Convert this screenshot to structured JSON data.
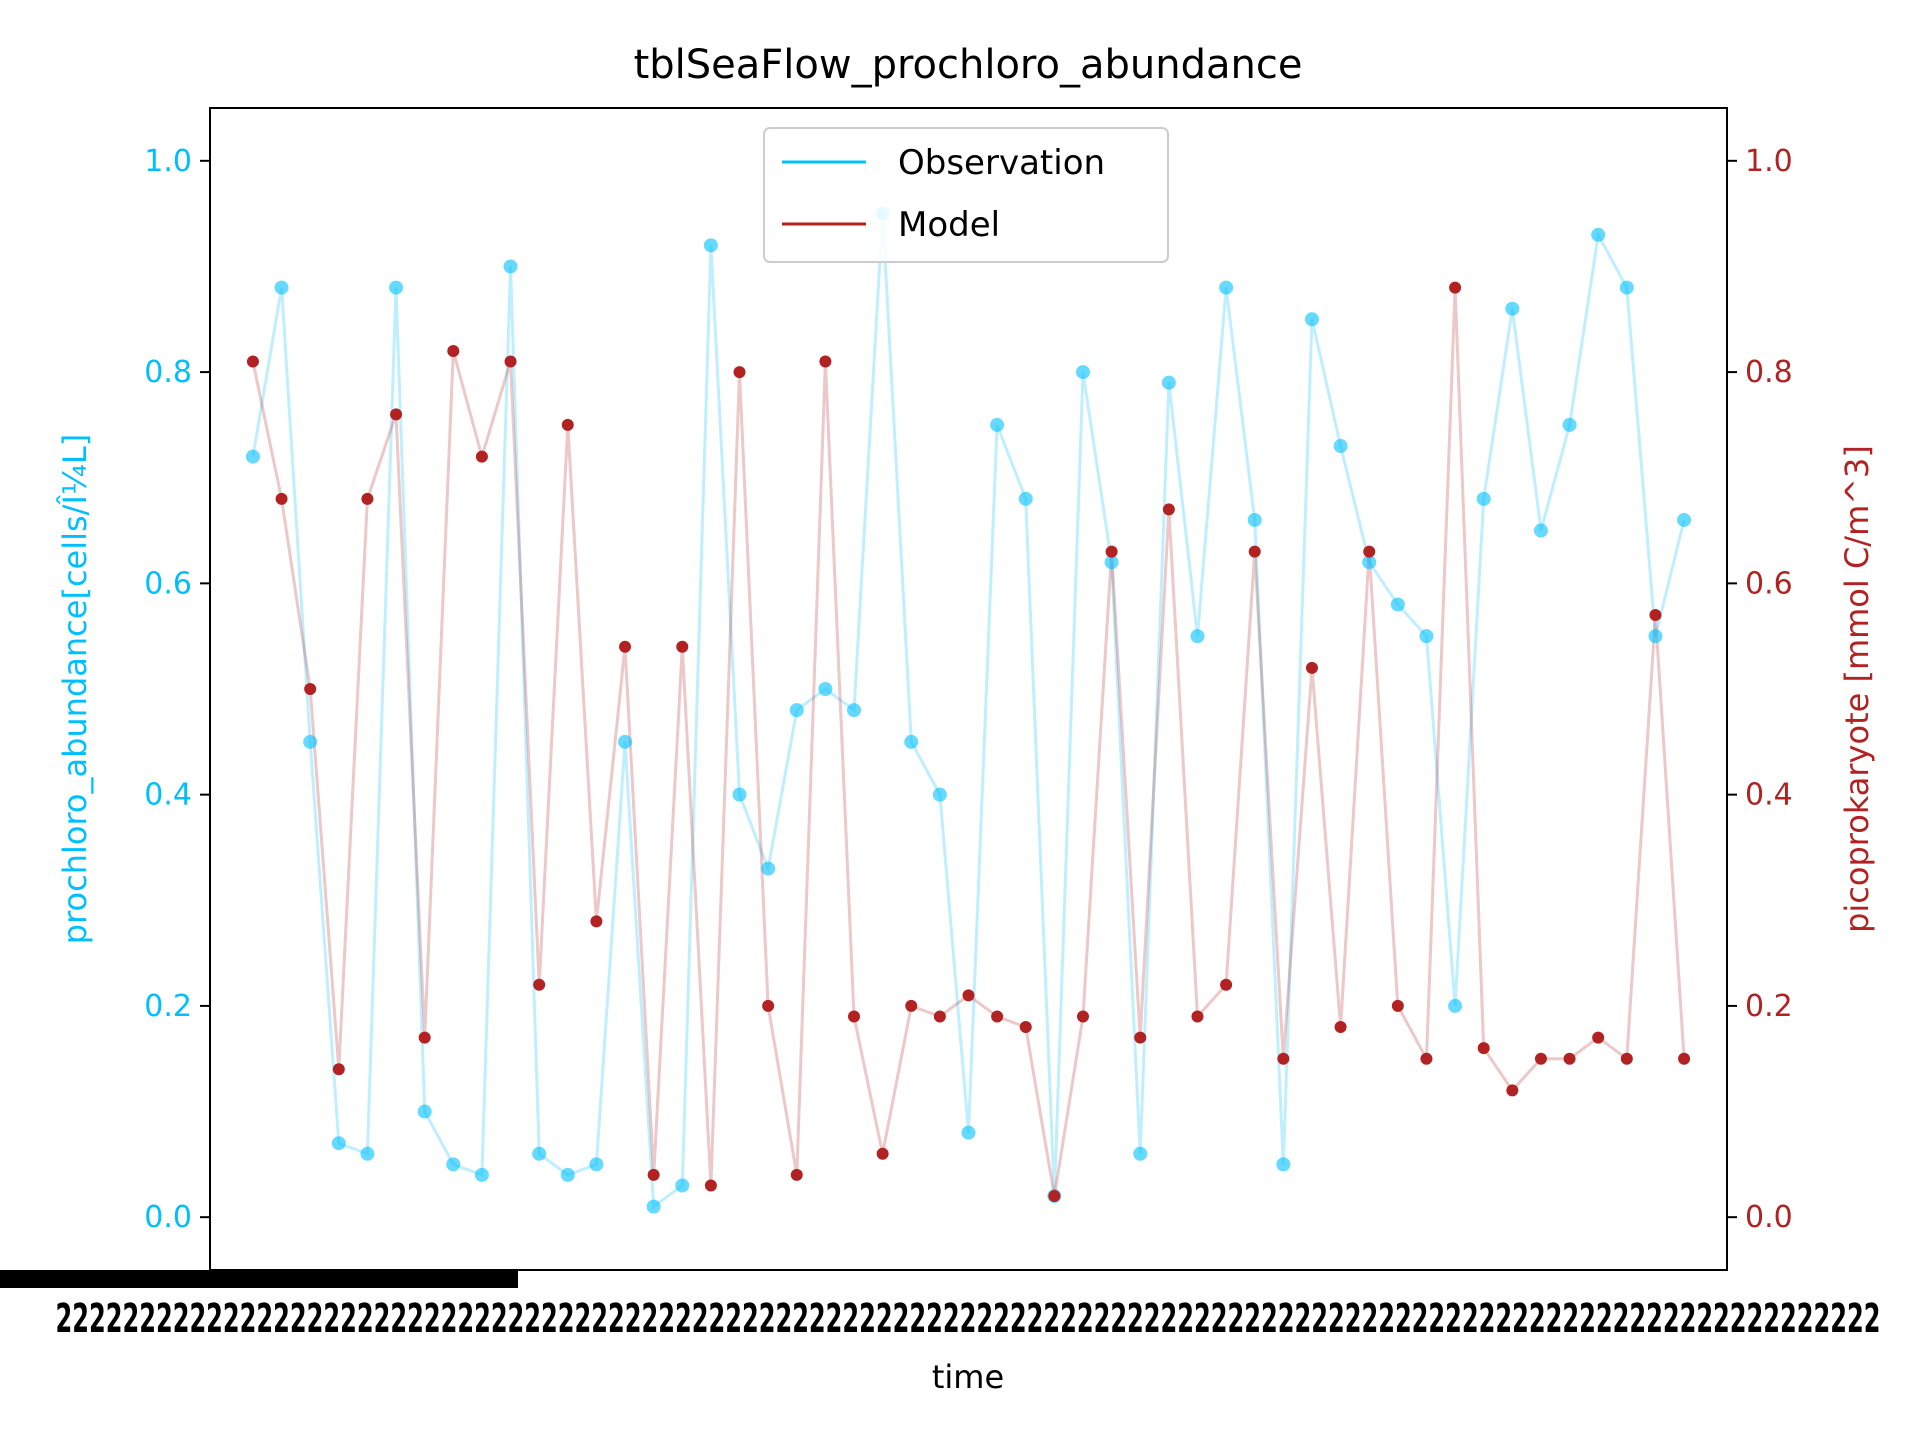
{
  "chart_data": {
    "type": "scatter",
    "title": "tblSeaFlow_prochloro_abundance",
    "xlabel": "time",
    "ylabel_left": "prochloro_abundance[cells/Î¼L]",
    "ylabel_right": "picoprokaryote [mmol C/m^3]",
    "ylim_left": [
      -0.05,
      1.05
    ],
    "ylim_right": [
      -0.05,
      1.05
    ],
    "yticks_left": [
      "0.0",
      "0.2",
      "0.4",
      "0.6",
      "0.8",
      "1.0"
    ],
    "yticks_right": [
      "0.0",
      "0.2",
      "0.4",
      "0.6",
      "0.8",
      "1.0"
    ],
    "x_ticks_unreadable": true,
    "x_tick_text": "2222222222222222222222222222222222222222222222222222222222222222222222222222222222222222222222222222222222222",
    "legend_position": "upper-center",
    "grid": false,
    "colors": {
      "observation": "#00bfff",
      "model": "#b22222"
    },
    "series": [
      {
        "name": "Observation",
        "color": "#00bfff",
        "x": [
          0,
          2,
          4,
          6,
          8,
          10,
          12,
          14,
          16,
          18,
          20,
          22,
          24,
          26,
          28,
          30,
          32,
          34,
          36,
          38,
          40,
          42,
          44,
          46,
          48,
          50,
          52,
          54,
          56,
          58,
          60,
          62,
          64,
          66,
          68,
          70,
          72,
          74,
          76,
          78,
          80,
          82,
          84,
          86,
          88,
          90,
          92,
          94,
          96,
          98,
          100
        ],
        "y": [
          0.72,
          0.88,
          0.45,
          0.07,
          0.06,
          0.88,
          0.1,
          0.05,
          0.04,
          0.9,
          0.06,
          0.04,
          0.05,
          0.45,
          0.01,
          0.03,
          0.92,
          0.4,
          0.33,
          0.48,
          0.5,
          0.48,
          0.95,
          0.45,
          0.4,
          0.08,
          0.75,
          0.68,
          0.02,
          0.8,
          0.62,
          0.06,
          0.79,
          0.55,
          0.88,
          0.66,
          0.05,
          0.85,
          0.73,
          0.62,
          0.58,
          0.55,
          0.2,
          0.68,
          0.86,
          0.65,
          0.75,
          0.93,
          0.88,
          0.55,
          0.66
        ]
      },
      {
        "name": "Model",
        "color": "#b22222",
        "x": [
          0,
          2,
          4,
          6,
          8,
          10,
          12,
          14,
          16,
          18,
          20,
          22,
          24,
          26,
          28,
          30,
          32,
          34,
          36,
          38,
          40,
          42,
          44,
          46,
          48,
          50,
          52,
          54,
          56,
          58,
          60,
          62,
          64,
          66,
          68,
          70,
          72,
          74,
          76,
          78,
          80,
          82,
          84,
          86,
          88,
          90,
          92,
          94,
          96,
          98,
          100
        ],
        "y": [
          0.81,
          0.68,
          0.5,
          0.14,
          0.68,
          0.76,
          0.17,
          0.82,
          0.72,
          0.81,
          0.22,
          0.75,
          0.28,
          0.54,
          0.04,
          0.54,
          0.03,
          0.8,
          0.2,
          0.04,
          0.81,
          0.19,
          0.06,
          0.2,
          0.19,
          0.21,
          0.19,
          0.18,
          0.02,
          0.19,
          0.63,
          0.17,
          0.67,
          0.19,
          0.22,
          0.63,
          0.15,
          0.52,
          0.18,
          0.63,
          0.2,
          0.15,
          0.88,
          0.16,
          0.12,
          0.15,
          0.15,
          0.17,
          0.15,
          0.57,
          0.15
        ]
      }
    ]
  }
}
